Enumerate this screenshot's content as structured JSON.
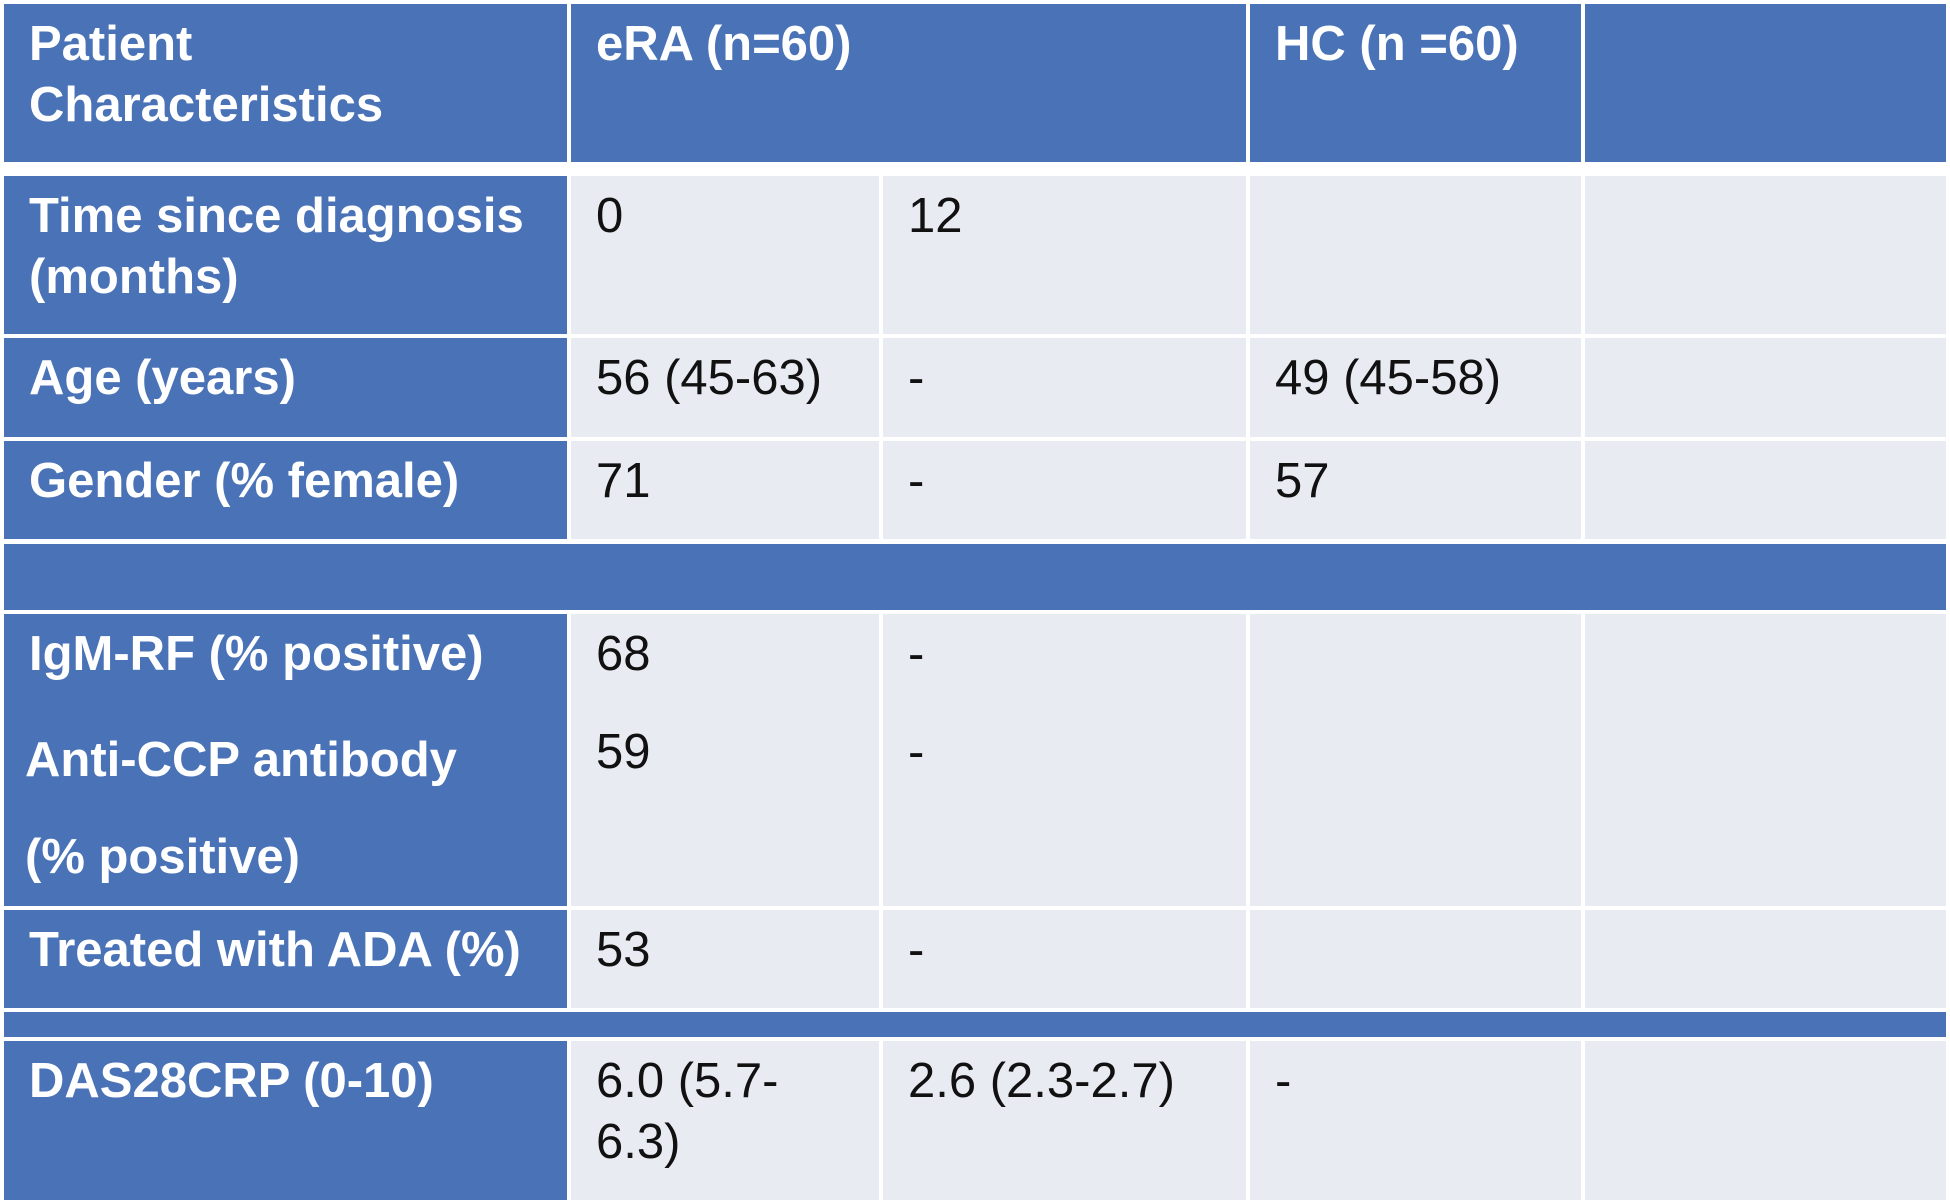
{
  "header": {
    "characteristics": "Patient\nCharacteristics",
    "era": "eRA (n=60)",
    "hc": "HC (n =60)",
    "extra": ""
  },
  "rows": [
    {
      "label": "Time since diagnosis\n(months)",
      "era_a": "0",
      "era_b": "12",
      "hc": "",
      "extra": ""
    },
    {
      "label": "Age (years)",
      "era_a": "56 (45-63)",
      "era_b": "-",
      "hc": "49 (45-58)",
      "extra": ""
    },
    {
      "label": "Gender (% female)",
      "era_a": "71",
      "era_b": "-",
      "hc": "57",
      "extra": ""
    },
    {
      "label": "IgM-RF (% positive)",
      "era_a": "68",
      "era_b": "-",
      "hc": "",
      "extra": ""
    },
    {
      "label": "Anti-CCP antibody\n(% positive)",
      "era_a": "59",
      "era_b": "-",
      "hc": "",
      "extra": ""
    },
    {
      "label": "Treated with ADA (%)",
      "era_a": "53",
      "era_b": "-",
      "hc": "",
      "extra": ""
    },
    {
      "label": "DAS28CRP (0-10)",
      "era_a": "6.0 (5.7-\n6.3)",
      "era_b": "2.6 (2.3-2.7)",
      "hc": "-",
      "extra": ""
    }
  ],
  "colors": {
    "header_blue": "#4a72b7",
    "body_gray": "#e9ebf3"
  }
}
